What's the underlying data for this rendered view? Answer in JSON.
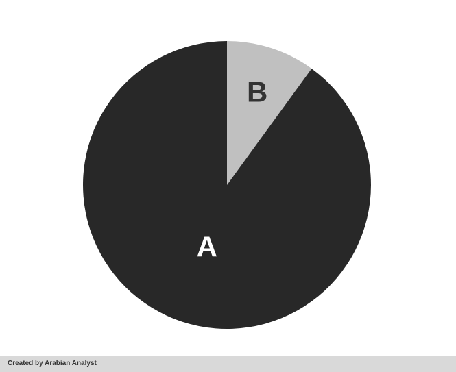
{
  "chart_data": {
    "type": "pie",
    "title": "",
    "start_angle_deg": 0,
    "direction": "clockwise",
    "slices": [
      {
        "label": "B",
        "value": 10,
        "color": "#c0c0c0",
        "label_color": "#333333"
      },
      {
        "label": "A",
        "value": 90,
        "color": "#282828",
        "label_color": "#ffffff"
      }
    ]
  },
  "footer": {
    "credit": "Created by Arabian Analyst"
  }
}
